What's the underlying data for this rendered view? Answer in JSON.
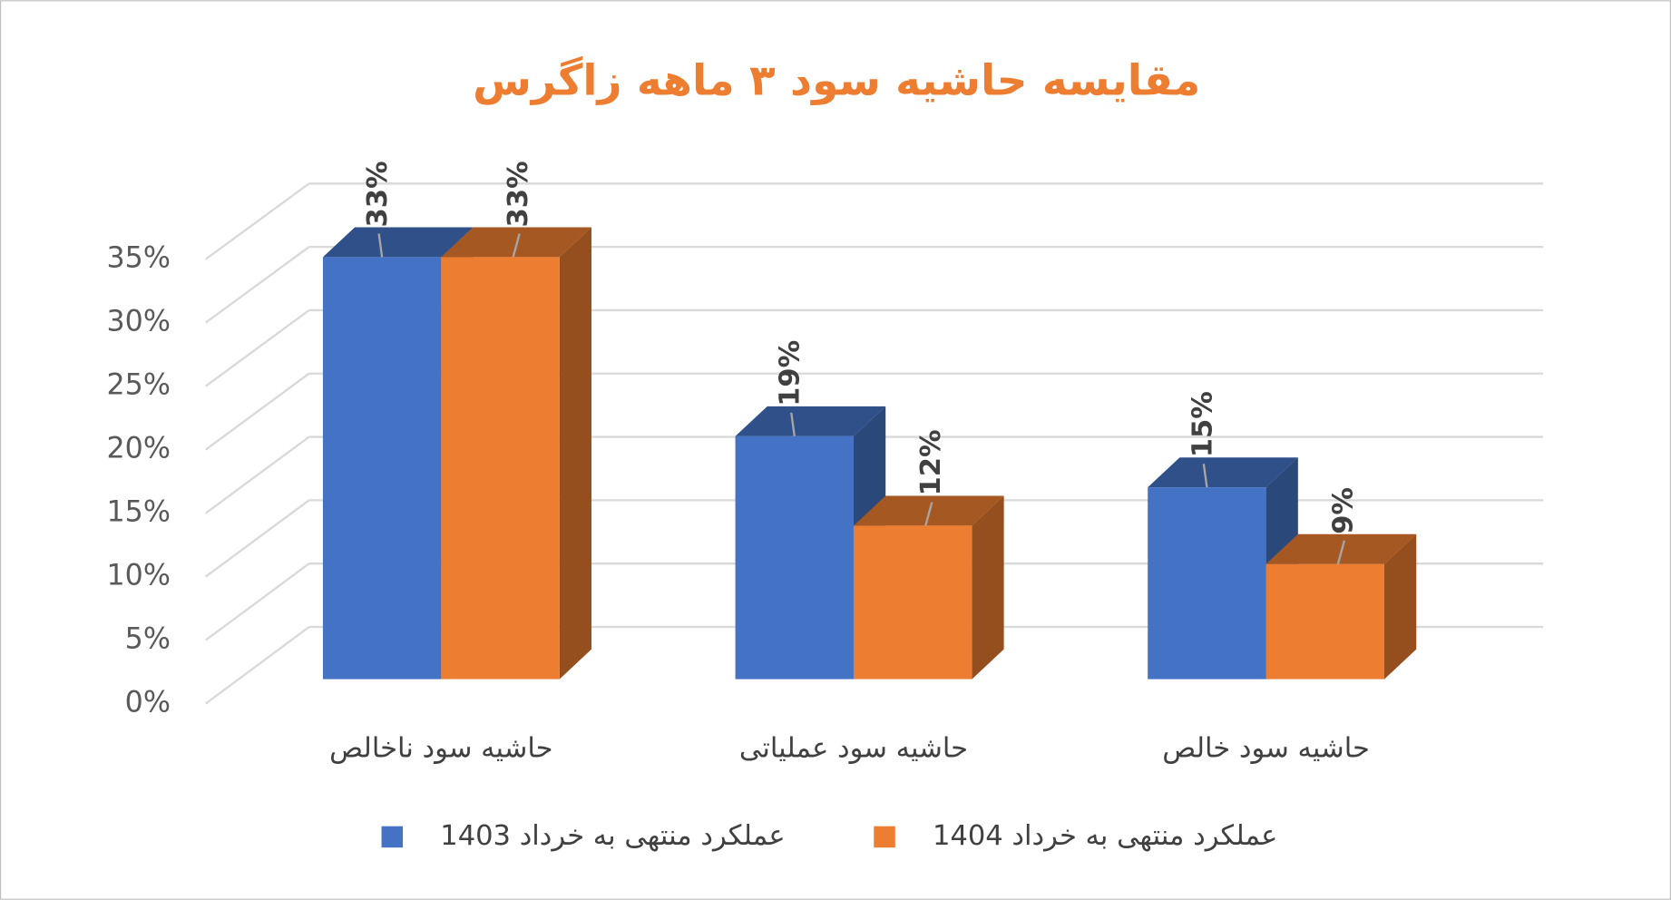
{
  "chart_data": {
    "type": "bar3d",
    "title": "مقایسه حاشیه سود ۳ ماهه زاگرس",
    "categories": [
      "حاشیه سود ناخالص",
      "حاشیه سود عملیاتی",
      "حاشیه سود خالص"
    ],
    "series": [
      {
        "name": "عملکرد منتهی به خرداد 1403",
        "color": "#4472c4",
        "values": [
          33,
          19,
          15
        ],
        "value_labels": [
          "33%",
          "19%",
          "15%"
        ]
      },
      {
        "name": "عملکرد منتهی به خرداد 1404",
        "color": "#ed7d31",
        "values": [
          33,
          12,
          9
        ],
        "value_labels": [
          "33%",
          "12%",
          "9%"
        ]
      }
    ],
    "ylim": [
      0,
      35
    ],
    "yticks": [
      {
        "value": 0,
        "label": "0%"
      },
      {
        "value": 5,
        "label": "5%"
      },
      {
        "value": 10,
        "label": "10%"
      },
      {
        "value": 15,
        "label": "15%"
      },
      {
        "value": 20,
        "label": "20%"
      },
      {
        "value": 25,
        "label": "25%"
      },
      {
        "value": 30,
        "label": "30%"
      },
      {
        "value": 35,
        "label": "35%"
      }
    ],
    "grid": true
  }
}
